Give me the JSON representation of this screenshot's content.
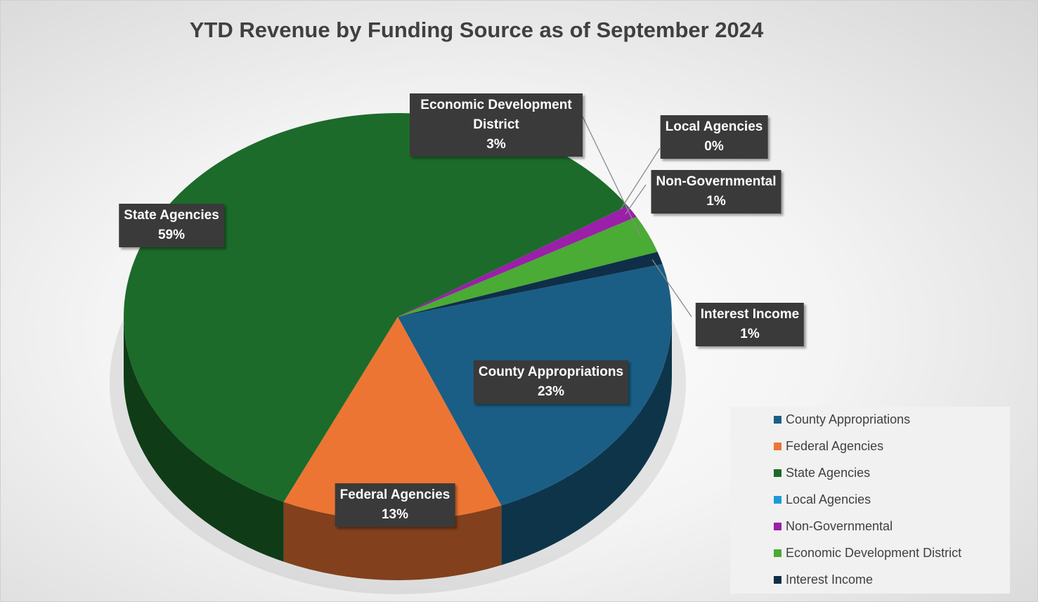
{
  "chart_data": {
    "type": "pie",
    "title": "YTD Revenue by Funding Source as of September 2024",
    "categories": [
      "County Appropriations",
      "Federal Agencies",
      "State Agencies",
      "Local Agencies",
      "Non-Governmental",
      "Economic Development District",
      "Interest Income"
    ],
    "values": [
      23,
      13,
      59,
      0,
      1,
      3,
      1
    ],
    "value_labels": [
      "23%",
      "13%",
      "59%",
      "0%",
      "1%",
      "3%",
      "1%"
    ],
    "colors": [
      "#1a5e85",
      "#ed7533",
      "#1c6b2a",
      "#1a9bd7",
      "#9b1fa8",
      "#4aab35",
      "#0f2f48"
    ],
    "legend": "right"
  }
}
